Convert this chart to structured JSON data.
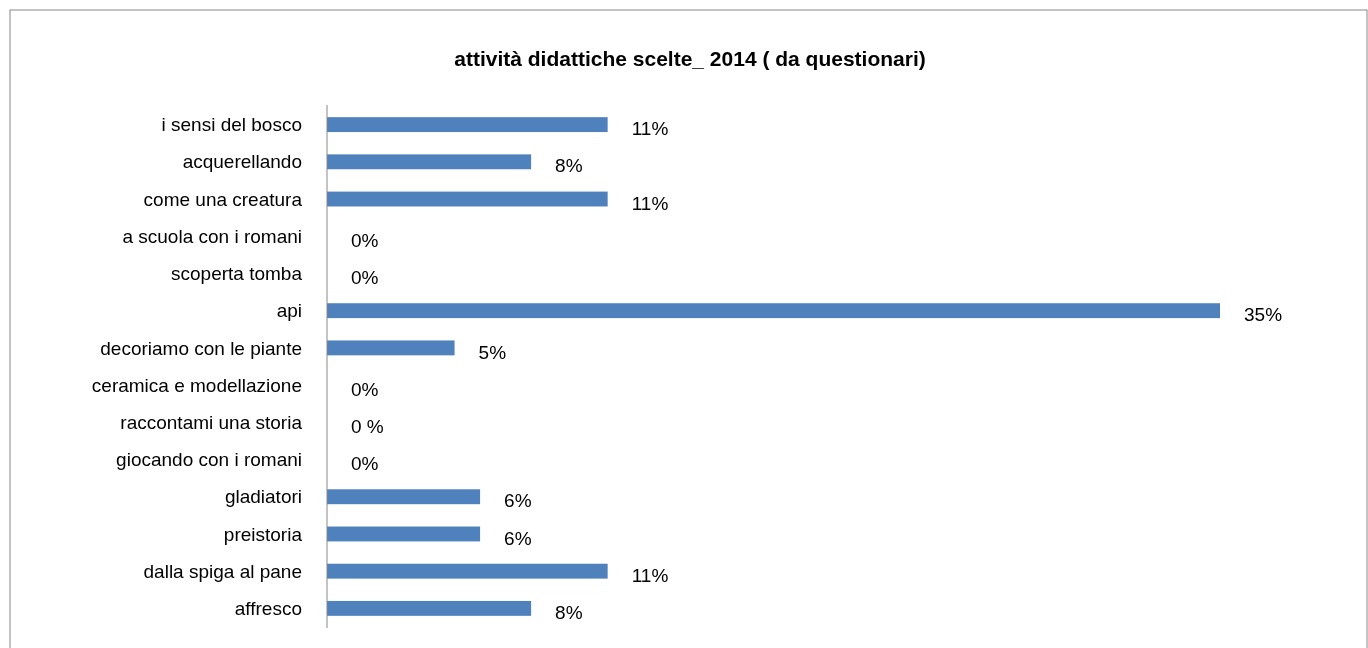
{
  "chart_data": {
    "type": "bar",
    "orientation": "horizontal",
    "title": "attività didattiche scelte_ 2014 ( da questionari)",
    "categories": [
      "i sensi del bosco",
      "acquerellando",
      "come una creatura ",
      "a scuola con i romani",
      "scoperta tomba",
      "api",
      "decoriamo con le piante",
      "ceramica e modellazione ",
      "raccontami una storia",
      "giocando con i romani",
      "gladiatori",
      "preistoria",
      "dalla spiga al pane",
      "affresco"
    ],
    "values": [
      11,
      8,
      11,
      0,
      0,
      35,
      5,
      0,
      0,
      0,
      6,
      6,
      11,
      8
    ],
    "value_labels": [
      "11%",
      "8%",
      "11%",
      "0%",
      "0%",
      "35%",
      "5%",
      "0%",
      "0 %",
      "0%",
      "6%",
      "6%",
      "11%",
      "8%"
    ],
    "color": "#4f81bd"
  }
}
